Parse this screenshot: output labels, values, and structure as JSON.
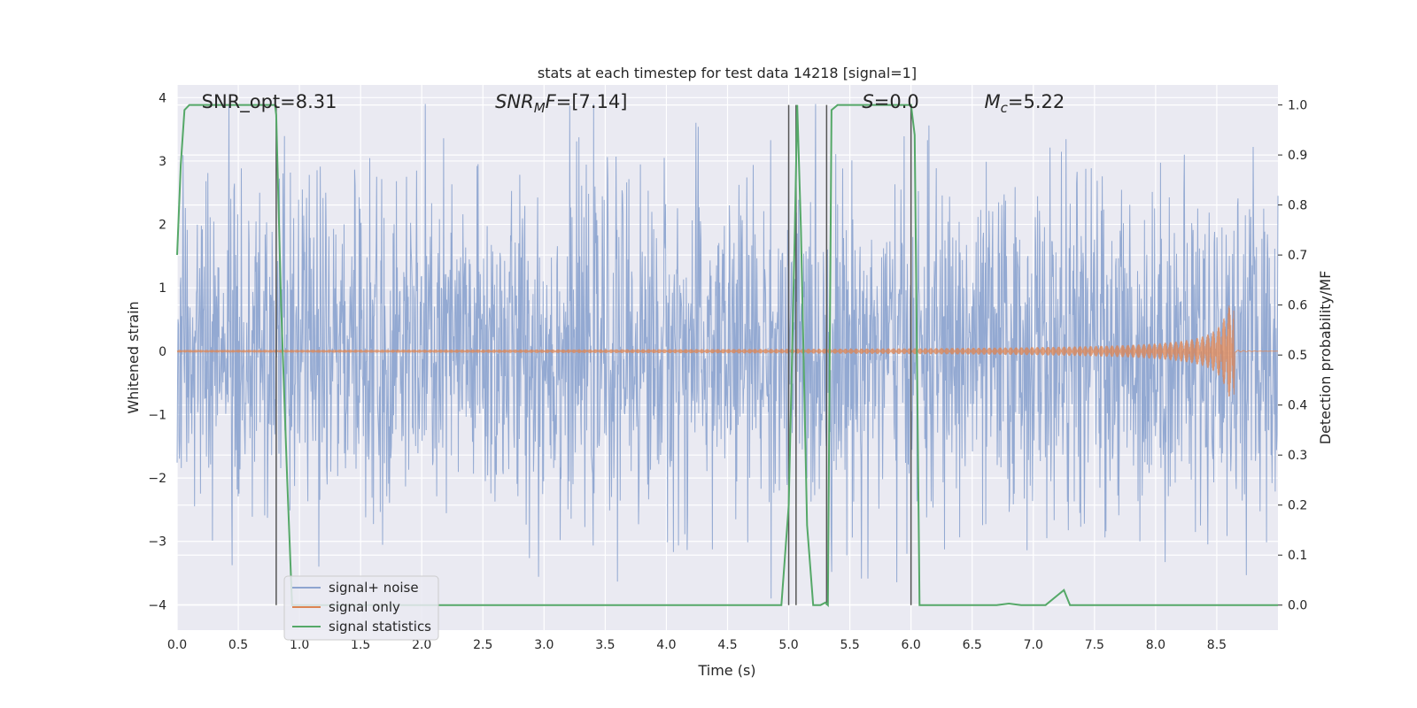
{
  "chart_data": {
    "type": "line",
    "title": "stats at each timestep for test data 14218 [signal=1]",
    "xlabel": "Time (s)",
    "ylabel": "Whitened strain",
    "y2label": "Detection probability/MF",
    "xlim": [
      0,
      9.0
    ],
    "ylim": [
      -4.4,
      4.2
    ],
    "y2lim": [
      -0.05,
      1.04
    ],
    "x_ticks": [
      "0.0",
      "0.5",
      "1.0",
      "1.5",
      "2.0",
      "2.5",
      "3.0",
      "3.5",
      "4.0",
      "4.5",
      "5.0",
      "5.5",
      "6.0",
      "6.5",
      "7.0",
      "7.5",
      "8.0",
      "8.5"
    ],
    "y_ticks": [
      "−4",
      "−3",
      "−2",
      "−1",
      "0",
      "1",
      "2",
      "3",
      "4"
    ],
    "y2_ticks": [
      "0.0",
      "0.1",
      "0.2",
      "0.3",
      "0.4",
      "0.5",
      "0.6",
      "0.7",
      "0.8",
      "0.9",
      "1.0"
    ],
    "grid": true,
    "legend_position": "lower-left",
    "annotations": [
      {
        "text": "SNR_opt=8.31",
        "x": 0.2
      },
      {
        "text": "SNRMF=[7.14]",
        "x": 2.6
      },
      {
        "text": "S=0.0",
        "x": 5.6
      },
      {
        "text": "Mc=5.22",
        "x": 6.6
      }
    ],
    "vertical_markers": [
      0.81,
      5.0,
      5.06,
      5.31,
      6.0
    ],
    "series": [
      {
        "name": "signal+ noise",
        "color": "#8ea5d0",
        "axis": "left",
        "noise_band": {
          "x_start": 0,
          "x_end": 9.0,
          "typical_amplitude": 1.3,
          "max_peak": 3.9,
          "min_trough": -3.9
        }
      },
      {
        "name": "signal only",
        "color": "#dd8452",
        "axis": "left",
        "chirp": {
          "x_start": 0,
          "x_end": 8.64,
          "amp_start": 0.02,
          "amp_peak": 0.72,
          "merger_time": 8.64
        }
      },
      {
        "name": "signal statistics",
        "color": "#55a868",
        "axis": "right",
        "x": [
          0,
          0.03,
          0.06,
          0.1,
          0.2,
          0.4,
          0.6,
          0.8,
          0.81,
          0.85,
          0.9,
          0.94,
          1.0,
          2.0,
          3.0,
          4.0,
          4.9,
          4.94,
          5.0,
          5.05,
          5.07,
          5.1,
          5.15,
          5.2,
          5.26,
          5.3,
          5.32,
          5.35,
          5.4,
          5.5,
          6.0,
          6.03,
          6.07,
          6.15,
          6.7,
          6.8,
          6.9,
          7.1,
          7.2,
          7.25,
          7.3,
          8.0,
          9.0
        ],
        "y": [
          0.7,
          0.88,
          0.99,
          1.0,
          1.0,
          1.0,
          1.0,
          1.0,
          0.98,
          0.6,
          0.25,
          0.0,
          0.0,
          0.0,
          0.0,
          0.0,
          0.0,
          0.0,
          0.2,
          0.75,
          1.0,
          0.75,
          0.16,
          0.0,
          0.0,
          0.005,
          0.0,
          0.99,
          1.0,
          1.0,
          1.0,
          0.94,
          0.0,
          0.0,
          0.0,
          0.003,
          0.0,
          0.0,
          0.02,
          0.03,
          0.0,
          0.0,
          0.0
        ]
      }
    ]
  }
}
